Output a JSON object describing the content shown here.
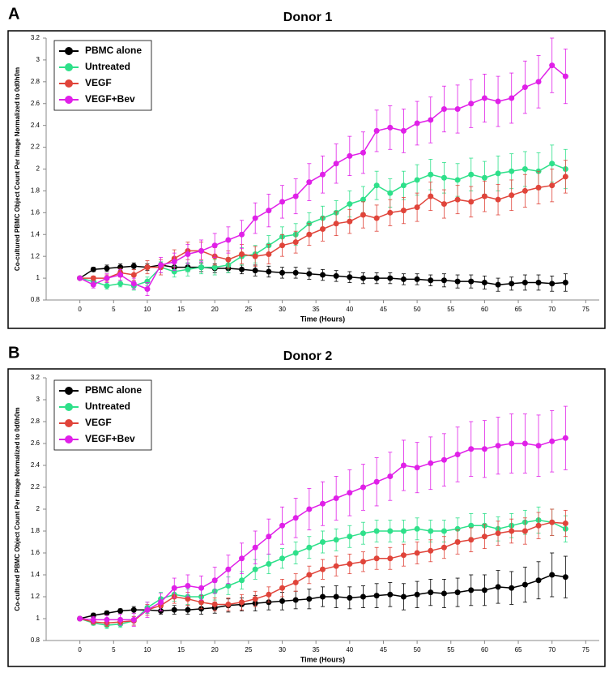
{
  "chart_data": [
    {
      "type": "line",
      "panel_label": "A",
      "title": "Donor 1",
      "xlabel": "Time (Hours)",
      "ylabel": "Co-cultured PBMC Object Count Per Image Normalized to 0d0h0m",
      "x": [
        0,
        2,
        4,
        6,
        8,
        10,
        12,
        14,
        16,
        18,
        20,
        22,
        24,
        26,
        28,
        30,
        32,
        34,
        36,
        38,
        40,
        42,
        44,
        46,
        48,
        50,
        52,
        54,
        56,
        58,
        60,
        62,
        64,
        66,
        68,
        70,
        72
      ],
      "xlim": [
        -5,
        77
      ],
      "ylim": [
        0.8,
        3.2
      ],
      "xticks": [
        0,
        5,
        10,
        15,
        20,
        25,
        30,
        35,
        40,
        45,
        50,
        55,
        60,
        65,
        70,
        75
      ],
      "yticks": [
        0.8,
        1,
        1.2,
        1.4,
        1.6,
        1.8,
        2,
        2.2,
        2.4,
        2.6,
        2.8,
        3,
        3.2
      ],
      "legend": "upper left",
      "series": [
        {
          "name": "PBMC alone",
          "color": "#000000",
          "values": [
            1,
            1.08,
            1.09,
            1.1,
            1.11,
            1.1,
            1.12,
            1.1,
            1.1,
            1.1,
            1.09,
            1.09,
            1.08,
            1.07,
            1.06,
            1.05,
            1.05,
            1.04,
            1.03,
            1.02,
            1.01,
            1,
            1,
            1,
            0.99,
            0.99,
            0.98,
            0.98,
            0.97,
            0.97,
            0.96,
            0.94,
            0.95,
            0.96,
            0.96,
            0.95,
            0.96
          ],
          "errors": [
            0,
            0.02,
            0.03,
            0.03,
            0.03,
            0.03,
            0.03,
            0.04,
            0.04,
            0.04,
            0.04,
            0.04,
            0.04,
            0.05,
            0.05,
            0.05,
            0.05,
            0.05,
            0.05,
            0.05,
            0.05,
            0.05,
            0.05,
            0.05,
            0.05,
            0.05,
            0.05,
            0.06,
            0.06,
            0.06,
            0.06,
            0.06,
            0.06,
            0.07,
            0.07,
            0.07,
            0.08
          ]
        },
        {
          "name": "Untreated",
          "color": "#2ee08a",
          "values": [
            1,
            0.97,
            0.93,
            0.95,
            0.93,
            0.97,
            1.1,
            1.06,
            1.08,
            1.1,
            1.1,
            1.12,
            1.2,
            1.22,
            1.3,
            1.38,
            1.4,
            1.5,
            1.55,
            1.6,
            1.68,
            1.72,
            1.85,
            1.78,
            1.85,
            1.9,
            1.95,
            1.92,
            1.9,
            1.95,
            1.92,
            1.96,
            1.98,
            2,
            1.98,
            2.05,
            2
          ],
          "errors": [
            0,
            0.02,
            0.03,
            0.03,
            0.04,
            0.04,
            0.05,
            0.05,
            0.06,
            0.06,
            0.07,
            0.07,
            0.08,
            0.08,
            0.09,
            0.09,
            0.1,
            0.1,
            0.11,
            0.11,
            0.12,
            0.12,
            0.13,
            0.13,
            0.13,
            0.14,
            0.14,
            0.14,
            0.15,
            0.15,
            0.15,
            0.16,
            0.16,
            0.16,
            0.17,
            0.17,
            0.18
          ]
        },
        {
          "name": "VEGF",
          "color": "#e0443a",
          "values": [
            1,
            1,
            1,
            1.05,
            1.03,
            1.1,
            1.1,
            1.18,
            1.25,
            1.25,
            1.2,
            1.17,
            1.22,
            1.2,
            1.22,
            1.3,
            1.33,
            1.4,
            1.45,
            1.5,
            1.52,
            1.58,
            1.55,
            1.6,
            1.62,
            1.65,
            1.75,
            1.68,
            1.72,
            1.7,
            1.75,
            1.72,
            1.76,
            1.8,
            1.83,
            1.85,
            1.93
          ],
          "errors": [
            0,
            0.02,
            0.03,
            0.04,
            0.05,
            0.06,
            0.07,
            0.08,
            0.08,
            0.08,
            0.08,
            0.08,
            0.09,
            0.09,
            0.09,
            0.1,
            0.1,
            0.1,
            0.11,
            0.11,
            0.11,
            0.12,
            0.12,
            0.12,
            0.12,
            0.13,
            0.13,
            0.13,
            0.13,
            0.14,
            0.14,
            0.14,
            0.14,
            0.15,
            0.15,
            0.15,
            0.15
          ]
        },
        {
          "name": "VEGF+Bev",
          "color": "#e020e8",
          "values": [
            1,
            0.94,
            1,
            1.03,
            0.95,
            0.9,
            1.12,
            1.15,
            1.22,
            1.25,
            1.3,
            1.35,
            1.4,
            1.55,
            1.62,
            1.7,
            1.75,
            1.88,
            1.95,
            2.05,
            2.12,
            2.15,
            2.35,
            2.38,
            2.35,
            2.42,
            2.45,
            2.55,
            2.55,
            2.6,
            2.65,
            2.62,
            2.65,
            2.75,
            2.8,
            2.95,
            2.85
          ],
          "errors": [
            0,
            0.03,
            0.04,
            0.05,
            0.05,
            0.06,
            0.07,
            0.08,
            0.09,
            0.1,
            0.11,
            0.12,
            0.13,
            0.14,
            0.15,
            0.15,
            0.16,
            0.17,
            0.17,
            0.18,
            0.18,
            0.19,
            0.19,
            0.2,
            0.2,
            0.2,
            0.21,
            0.21,
            0.22,
            0.22,
            0.22,
            0.23,
            0.23,
            0.24,
            0.24,
            0.25,
            0.25
          ]
        }
      ]
    },
    {
      "type": "line",
      "panel_label": "B",
      "title": "Donor 2",
      "xlabel": "Time (Hours)",
      "ylabel": "Co-cultured PBMC Object Count Per Image Normalized to 0d0h0m",
      "x": [
        0,
        2,
        4,
        6,
        8,
        10,
        12,
        14,
        16,
        18,
        20,
        22,
        24,
        26,
        28,
        30,
        32,
        34,
        36,
        38,
        40,
        42,
        44,
        46,
        48,
        50,
        52,
        54,
        56,
        58,
        60,
        62,
        64,
        66,
        68,
        70,
        72
      ],
      "xlim": [
        -5,
        77
      ],
      "ylim": [
        0.8,
        3.2
      ],
      "xticks": [
        0,
        5,
        10,
        15,
        20,
        25,
        30,
        35,
        40,
        45,
        50,
        55,
        60,
        65,
        70,
        75
      ],
      "yticks": [
        0.8,
        1,
        1.2,
        1.4,
        1.6,
        1.8,
        2,
        2.2,
        2.4,
        2.6,
        2.8,
        3,
        3.2
      ],
      "legend": "upper left",
      "series": [
        {
          "name": "PBMC alone",
          "color": "#000000",
          "values": [
            1,
            1.03,
            1.05,
            1.07,
            1.08,
            1.08,
            1.07,
            1.08,
            1.08,
            1.09,
            1.1,
            1.12,
            1.13,
            1.14,
            1.15,
            1.16,
            1.17,
            1.18,
            1.2,
            1.2,
            1.19,
            1.2,
            1.21,
            1.22,
            1.2,
            1.22,
            1.24,
            1.23,
            1.24,
            1.26,
            1.26,
            1.29,
            1.28,
            1.31,
            1.35,
            1.4,
            1.38
          ],
          "errors": [
            0,
            0.02,
            0.02,
            0.02,
            0.03,
            0.03,
            0.03,
            0.04,
            0.04,
            0.05,
            0.05,
            0.06,
            0.06,
            0.07,
            0.07,
            0.08,
            0.08,
            0.09,
            0.09,
            0.1,
            0.1,
            0.1,
            0.11,
            0.11,
            0.12,
            0.12,
            0.12,
            0.13,
            0.13,
            0.14,
            0.14,
            0.15,
            0.15,
            0.16,
            0.17,
            0.2,
            0.19
          ]
        },
        {
          "name": "Untreated",
          "color": "#2ee08a",
          "values": [
            1,
            0.96,
            0.94,
            0.95,
            0.98,
            1.1,
            1.18,
            1.22,
            1.2,
            1.2,
            1.25,
            1.3,
            1.35,
            1.45,
            1.5,
            1.55,
            1.6,
            1.65,
            1.7,
            1.72,
            1.75,
            1.78,
            1.8,
            1.8,
            1.8,
            1.82,
            1.8,
            1.8,
            1.82,
            1.85,
            1.85,
            1.82,
            1.85,
            1.88,
            1.9,
            1.88,
            1.82
          ],
          "errors": [
            0,
            0.02,
            0.03,
            0.03,
            0.04,
            0.05,
            0.06,
            0.06,
            0.07,
            0.07,
            0.08,
            0.08,
            0.08,
            0.09,
            0.09,
            0.09,
            0.1,
            0.1,
            0.1,
            0.1,
            0.1,
            0.1,
            0.1,
            0.1,
            0.1,
            0.1,
            0.1,
            0.1,
            0.1,
            0.11,
            0.11,
            0.11,
            0.11,
            0.11,
            0.12,
            0.12,
            0.12
          ]
        },
        {
          "name": "VEGF",
          "color": "#e0443a",
          "values": [
            1,
            0.97,
            0.96,
            0.97,
            0.98,
            1.08,
            1.12,
            1.2,
            1.18,
            1.15,
            1.13,
            1.13,
            1.15,
            1.18,
            1.22,
            1.28,
            1.33,
            1.4,
            1.45,
            1.48,
            1.5,
            1.52,
            1.55,
            1.55,
            1.58,
            1.6,
            1.62,
            1.65,
            1.7,
            1.72,
            1.75,
            1.78,
            1.8,
            1.8,
            1.85,
            1.88,
            1.87
          ],
          "errors": [
            0,
            0.02,
            0.03,
            0.03,
            0.04,
            0.05,
            0.05,
            0.06,
            0.06,
            0.06,
            0.06,
            0.06,
            0.07,
            0.07,
            0.07,
            0.08,
            0.08,
            0.08,
            0.09,
            0.09,
            0.09,
            0.09,
            0.1,
            0.1,
            0.1,
            0.1,
            0.1,
            0.1,
            0.11,
            0.11,
            0.11,
            0.11,
            0.11,
            0.12,
            0.12,
            0.12,
            0.12
          ]
        },
        {
          "name": "VEGF+Bev",
          "color": "#e020e8",
          "values": [
            1,
            0.99,
            0.99,
            0.99,
            0.99,
            1.08,
            1.15,
            1.28,
            1.3,
            1.28,
            1.35,
            1.45,
            1.55,
            1.65,
            1.75,
            1.85,
            1.92,
            2,
            2.05,
            2.1,
            2.15,
            2.2,
            2.25,
            2.3,
            2.4,
            2.38,
            2.42,
            2.45,
            2.5,
            2.55,
            2.55,
            2.58,
            2.6,
            2.6,
            2.58,
            2.62,
            2.65
          ],
          "errors": [
            0,
            0.03,
            0.04,
            0.05,
            0.06,
            0.07,
            0.08,
            0.09,
            0.1,
            0.11,
            0.12,
            0.13,
            0.14,
            0.15,
            0.16,
            0.17,
            0.18,
            0.19,
            0.2,
            0.2,
            0.21,
            0.21,
            0.22,
            0.22,
            0.23,
            0.23,
            0.24,
            0.24,
            0.25,
            0.25,
            0.26,
            0.26,
            0.27,
            0.27,
            0.28,
            0.28,
            0.29
          ]
        }
      ]
    }
  ]
}
